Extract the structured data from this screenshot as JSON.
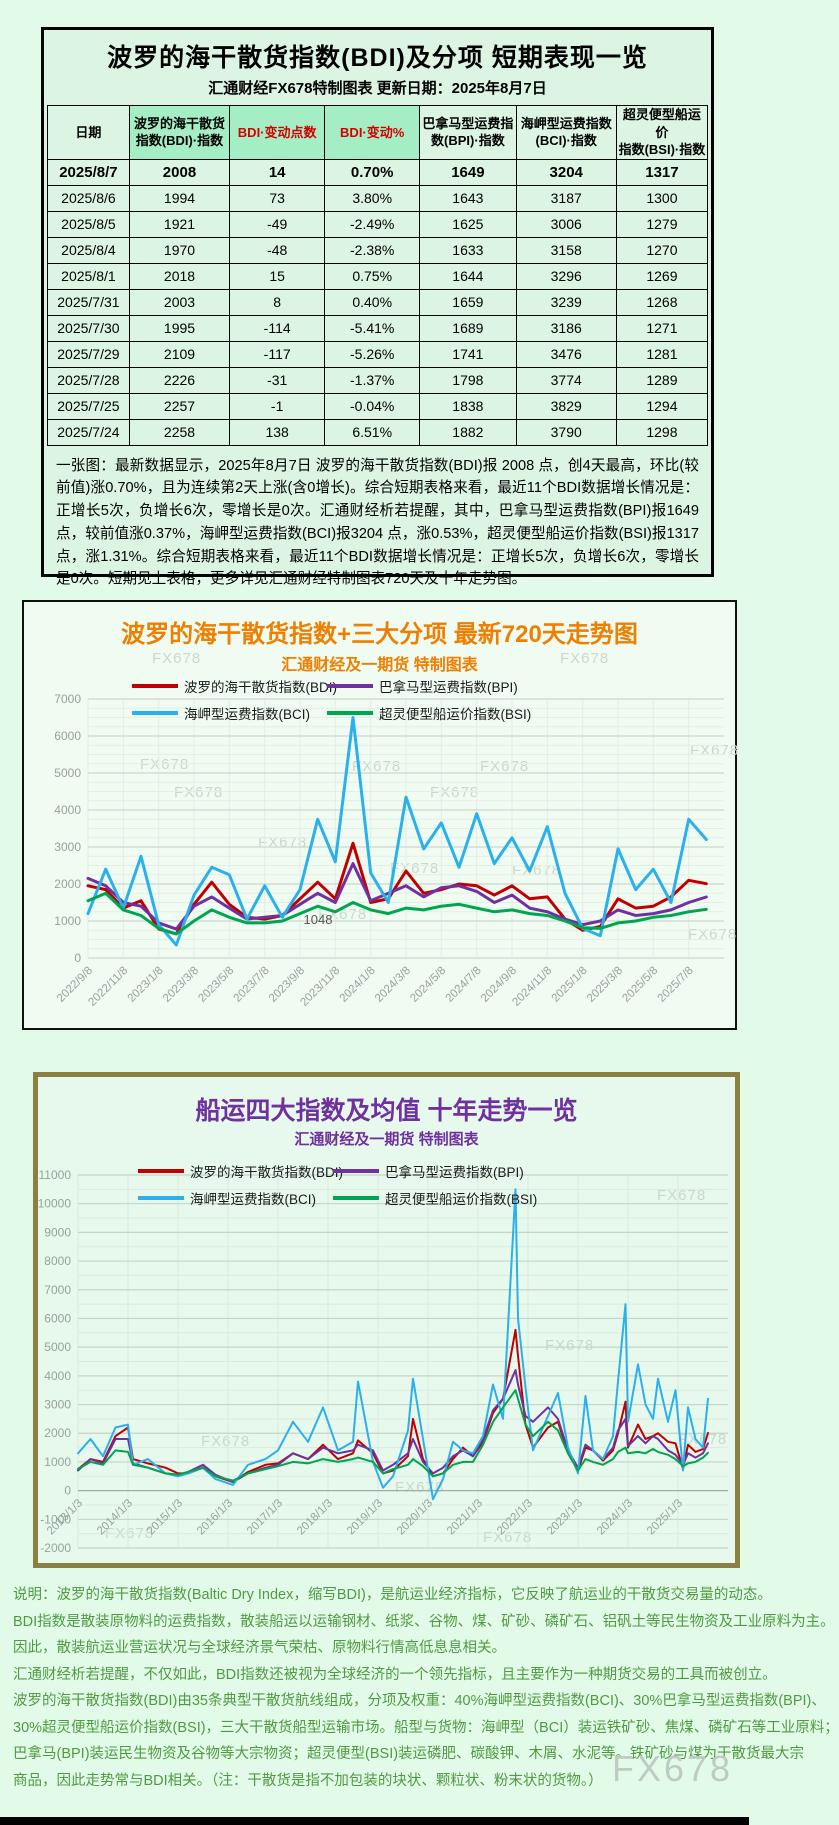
{
  "top": {
    "title": "波罗的海干散货指数(BDI)及分项  短期表现一览",
    "subtitle": "汇通财经FX678特制图表    更新日期：2025年8月7日",
    "summary": "一张图：最新数据显示，2025年8月7日 波罗的海干散货指数(BDI)报 2008 点，创4天最高，环比(较前值)涨0.70%，且为连续第2天上涨(含0增长)。综合短期表格来看，最近11个BDI数据增长情况是：正增长5次，负增长6次，零增长是0次。汇通财经析若提醒，其中，巴拿马型运费指数(BPI)报1649 点，较前值涨0.37%，海岬型运费指数(BCI)报3204 点，涨0.53%，超灵便型船运价指数(BSI)报1317 点，涨1.31%。综合短期表格来看，最近11个BDI数据增长情况是：正增长5次，负增长6次，零增长是0次。短期见上表格，更多详见汇通财经特制图表720天及十年走势图。"
  },
  "table": {
    "columns": [
      {
        "label": "日期",
        "highlight": false,
        "red": false
      },
      {
        "label": "波罗的海干散货\n指数(BDI)·指数",
        "highlight": true,
        "red": false
      },
      {
        "label": "BDI·变动点数",
        "highlight": true,
        "red": true
      },
      {
        "label": "BDI·变动%",
        "highlight": true,
        "red": true
      },
      {
        "label": "巴拿马型运费指\n数(BPI)·指数",
        "highlight": false,
        "red": false
      },
      {
        "label": "海岬型运费指数\n(BCI)·指数",
        "highlight": false,
        "red": false
      },
      {
        "label": "超灵便型船运价\n指数(BSI)·指数",
        "highlight": false,
        "red": false
      }
    ],
    "rows": [
      [
        "2025/8/7",
        "2008",
        "14",
        "0.70%",
        "1649",
        "3204",
        "1317"
      ],
      [
        "2025/8/6",
        "1994",
        "73",
        "3.80%",
        "1643",
        "3187",
        "1300"
      ],
      [
        "2025/8/5",
        "1921",
        "-49",
        "-2.49%",
        "1625",
        "3006",
        "1279"
      ],
      [
        "2025/8/4",
        "1970",
        "-48",
        "-2.38%",
        "1633",
        "3158",
        "1270"
      ],
      [
        "2025/8/1",
        "2018",
        "15",
        "0.75%",
        "1644",
        "3296",
        "1269"
      ],
      [
        "2025/7/31",
        "2003",
        "8",
        "0.40%",
        "1659",
        "3239",
        "1268"
      ],
      [
        "2025/7/30",
        "1995",
        "-114",
        "-5.41%",
        "1689",
        "3186",
        "1271"
      ],
      [
        "2025/7/29",
        "2109",
        "-117",
        "-5.26%",
        "1741",
        "3476",
        "1281"
      ],
      [
        "2025/7/28",
        "2226",
        "-31",
        "-1.37%",
        "1798",
        "3774",
        "1289"
      ],
      [
        "2025/7/25",
        "2257",
        "-1",
        "-0.04%",
        "1838",
        "3829",
        "1294"
      ],
      [
        "2025/7/24",
        "2258",
        "138",
        "6.51%",
        "1882",
        "3790",
        "1298"
      ]
    ]
  },
  "chart_data": [
    {
      "type": "line",
      "title": "波罗的海干散货指数+三大分项  最新720天走势图",
      "subtitle": "汇通财经及一期货 特制图表",
      "ylim": [
        0,
        7000
      ],
      "ytick_step": 1000,
      "y_minor_step": 250,
      "xlim": [
        0,
        36
      ],
      "x": [
        0,
        1,
        2,
        3,
        4,
        5,
        6,
        7,
        8,
        9,
        10,
        11,
        12,
        13,
        14,
        15,
        16,
        17,
        18,
        19,
        20,
        21,
        22,
        23,
        24,
        25,
        26,
        27,
        28,
        29,
        30,
        31,
        32,
        33,
        34,
        35
      ],
      "x_ticks": {
        "values": [
          0,
          2,
          4,
          6,
          8,
          10,
          12,
          14,
          16,
          18,
          20,
          22,
          24,
          26,
          28,
          30,
          32,
          34
        ],
        "labels": [
          "2022/9/8",
          "2022/11/8",
          "2023/1/8",
          "2023/3/8",
          "2023/5/8",
          "2023/7/8",
          "2023/9/8",
          "2023/11/8",
          "2024/1/8",
          "2024/3/8",
          "2024/5/8",
          "2024/7/8",
          "2024/9/8",
          "2024/11/8",
          "2025/1/8",
          "2025/3/8",
          "2025/5/8",
          "2025/7/8"
        ]
      },
      "annotation": {
        "label": "1048",
        "x": 12.2,
        "y": 1048
      },
      "series": [
        {
          "name": "波罗的海干散货指数(BDI)",
          "color": "#c00000",
          "values": [
            1950,
            1850,
            1350,
            1550,
            780,
            650,
            1450,
            2050,
            1450,
            1100,
            1050,
            1150,
            1600,
            2050,
            1600,
            3100,
            1500,
            1600,
            2350,
            1750,
            1850,
            2000,
            1950,
            1700,
            1950,
            1600,
            1650,
            1050,
            750,
            850,
            1600,
            1350,
            1400,
            1650,
            2100,
            2008
          ]
        },
        {
          "name": "巴拿马型运费指数(BPI)",
          "color": "#7030a0",
          "values": [
            2150,
            1950,
            1500,
            1400,
            950,
            780,
            1400,
            1650,
            1350,
            1050,
            1100,
            1150,
            1450,
            1750,
            1500,
            2550,
            1550,
            1750,
            1950,
            1650,
            1900,
            1950,
            1800,
            1500,
            1700,
            1350,
            1250,
            1050,
            900,
            1000,
            1300,
            1150,
            1200,
            1300,
            1500,
            1649
          ]
        },
        {
          "name": "海岬型运费指数(BCI)",
          "color": "#2ab0ea",
          "values": [
            1200,
            2400,
            1350,
            2750,
            900,
            350,
            1700,
            2450,
            2250,
            1050,
            1950,
            1100,
            1850,
            3750,
            2600,
            6500,
            2300,
            1500,
            4350,
            2950,
            3650,
            2450,
            3900,
            2550,
            3250,
            2350,
            3550,
            1750,
            800,
            600,
            2950,
            1850,
            2400,
            1500,
            3750,
            3204
          ]
        },
        {
          "name": "超灵便型船运价指数(BSI)",
          "color": "#00a550",
          "values": [
            1550,
            1750,
            1300,
            1150,
            800,
            650,
            1000,
            1300,
            1100,
            950,
            950,
            1000,
            1200,
            1400,
            1250,
            1500,
            1300,
            1200,
            1350,
            1300,
            1400,
            1450,
            1350,
            1250,
            1300,
            1200,
            1150,
            1000,
            820,
            800,
            950,
            1000,
            1100,
            1150,
            1250,
            1317
          ]
        }
      ]
    },
    {
      "type": "line",
      "title": "船运四大指数及均值 十年走势一览",
      "subtitle": "汇通财经及一期货 特制图表",
      "ylim": [
        -2000,
        11000
      ],
      "ytick_step": 1000,
      "y_minor_step": 500,
      "zero_dark": true,
      "x_labels_at_zero": true,
      "xlim": [
        2013,
        2026
      ],
      "x": [
        2013.0,
        2013.25,
        2013.5,
        2013.75,
        2014.0,
        2014.1,
        2014.4,
        2014.75,
        2015.0,
        2015.2,
        2015.5,
        2015.75,
        2016.1,
        2016.4,
        2016.75,
        2017.0,
        2017.3,
        2017.6,
        2017.9,
        2018.2,
        2018.5,
        2018.6,
        2018.9,
        2019.1,
        2019.3,
        2019.6,
        2019.7,
        2019.9,
        2020.1,
        2020.3,
        2020.5,
        2020.7,
        2020.9,
        2021.1,
        2021.3,
        2021.5,
        2021.75,
        2021.8,
        2021.95,
        2022.1,
        2022.4,
        2022.6,
        2022.8,
        2023.0,
        2023.15,
        2023.3,
        2023.5,
        2023.7,
        2023.8,
        2023.95,
        2024.0,
        2024.2,
        2024.35,
        2024.5,
        2024.6,
        2024.8,
        2024.95,
        2025.1,
        2025.2,
        2025.35,
        2025.5,
        2025.6
      ],
      "x_ticks": {
        "values": [
          2013,
          2014,
          2015,
          2016,
          2017,
          2018,
          2019,
          2020,
          2021,
          2022,
          2023,
          2024,
          2025
        ],
        "labels": [
          "2013/1/3",
          "2014/1/3",
          "2015/1/3",
          "2016/1/3",
          "2017/1/3",
          "2018/1/3",
          "2019/1/3",
          "2020/1/3",
          "2021/1/3",
          "2022/1/3",
          "2023/1/3",
          "2024/1/3",
          "2025/1/3"
        ]
      },
      "series": [
        {
          "name": "波罗的海干散货指数(BDI)",
          "color": "#c00000",
          "values": [
            750,
            1100,
            1000,
            1900,
            2200,
            1100,
            950,
            800,
            600,
            600,
            800,
            500,
            300,
            650,
            900,
            950,
            1300,
            1100,
            1600,
            1100,
            1300,
            1750,
            1300,
            600,
            700,
            1200,
            2500,
            1100,
            500,
            600,
            1100,
            1500,
            1200,
            1700,
            2700,
            3200,
            5600,
            4700,
            2300,
            1500,
            2200,
            2400,
            1300,
            700,
            1500,
            1400,
            1050,
            1400,
            2000,
            3100,
            1500,
            2300,
            1800,
            1900,
            2000,
            1700,
            1650,
            750,
            1600,
            1350,
            1450,
            2008
          ]
        },
        {
          "name": "巴拿马型运费指数(BPI)",
          "color": "#7030a0",
          "values": [
            700,
            1100,
            950,
            1800,
            1800,
            950,
            800,
            600,
            550,
            650,
            900,
            550,
            300,
            600,
            800,
            900,
            1300,
            1100,
            1500,
            1300,
            1400,
            1600,
            1400,
            700,
            900,
            1300,
            1800,
            1000,
            600,
            800,
            1200,
            1400,
            1200,
            1800,
            2800,
            3200,
            4200,
            3700,
            2600,
            2400,
            2900,
            2500,
            1400,
            800,
            1600,
            1400,
            1100,
            1500,
            2100,
            2500,
            1550,
            1900,
            1650,
            1900,
            1800,
            1400,
            1250,
            900,
            1300,
            1150,
            1300,
            1649
          ]
        },
        {
          "name": "海岬型运费指数(BCI)",
          "color": "#2ab0ea",
          "values": [
            1300,
            1800,
            1200,
            2200,
            2300,
            900,
            1100,
            600,
            500,
            600,
            800,
            400,
            200,
            900,
            1100,
            1400,
            2400,
            1700,
            2900,
            1400,
            1700,
            3800,
            1000,
            100,
            500,
            2100,
            3900,
            1800,
            -300,
            400,
            1700,
            1400,
            1300,
            1900,
            3700,
            2500,
            10500,
            6000,
            3600,
            1400,
            2600,
            3400,
            1500,
            600,
            3300,
            1400,
            1100,
            1900,
            3800,
            6500,
            2400,
            4400,
            3000,
            2500,
            3900,
            2400,
            3500,
            700,
            2900,
            1800,
            1500,
            3204
          ]
        },
        {
          "name": "超灵便型船运价指数(BSI)",
          "color": "#00a550",
          "values": [
            750,
            1000,
            900,
            1400,
            1350,
            900,
            800,
            600,
            550,
            650,
            800,
            500,
            350,
            600,
            750,
            850,
            1000,
            950,
            1100,
            1000,
            1100,
            1150,
            1000,
            600,
            750,
            900,
            1100,
            850,
            500,
            600,
            900,
            1000,
            1000,
            1600,
            2400,
            2900,
            3500,
            3200,
            2300,
            1900,
            2400,
            2100,
            1300,
            700,
            1100,
            1000,
            900,
            1100,
            1350,
            1500,
            1300,
            1350,
            1300,
            1450,
            1350,
            1250,
            1100,
            850,
            950,
            1000,
            1150,
            1317
          ]
        }
      ]
    }
  ],
  "notes": {
    "lines": [
      "说明：波罗的海干散货指数(Baltic Dry Index，缩写BDI)，是航运业经济指标，它反映了航运业的干散货交易量的动态。",
      "BDI指数是散装原物料的运费指数，散装船运以运输钢材、纸浆、谷物、煤、矿砂、磷矿石、铝矾土等民生物资及工业原料为主。",
      "因此，散装航运业营运状况与全球经济景气荣枯、原物料行情高低息息相关。",
      "汇通财经析若提醒，不仅如此，BDI指数还被视为全球经济的一个领先指标，且主要作为一种期货交易的工具而被创立。",
      "波罗的海干散货指数(BDI)由35条典型干散货航线组成，分项及权重：40%海岬型运费指数(BCI)、30%巴拿马型运费指数(BPI)、",
      "30%超灵便型船运价指数(BSI)，三大干散货船型运输市场。船型与货物：海岬型（BCI）装运铁矿砂、焦煤、磷矿石等工业原料；",
      "巴拿马(BPI)装运民生物资及谷物等大宗物资；超灵便型(BSI)装运磷肥、碳酸钾、木屑、水泥等。铁矿砂与煤为干散货最大宗",
      "商品，因此走势常与BDI相关。（注：干散货是指不加包装的块状、颗粒状、粉末状的货物。）"
    ]
  },
  "watermark": "FX678"
}
